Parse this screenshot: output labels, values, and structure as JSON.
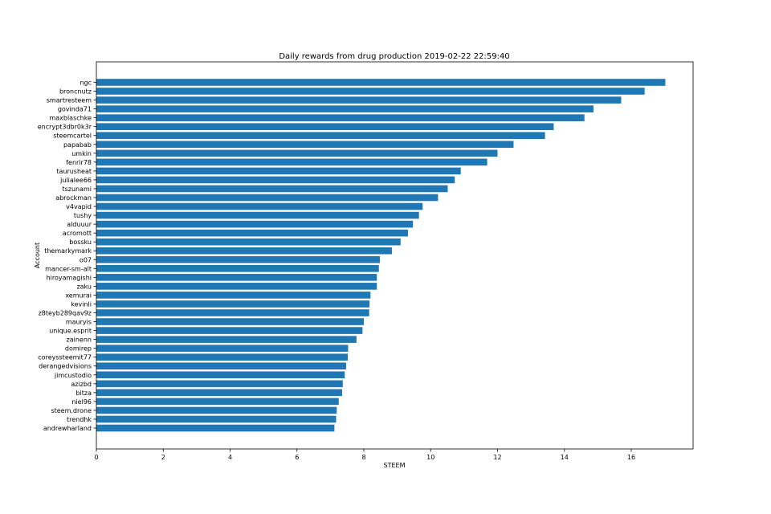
{
  "chart_data": {
    "type": "bar",
    "orientation": "horizontal",
    "title": "Daily rewards from drug production 2019-02-22 22:59:40",
    "xlabel": "STEEM",
    "ylabel": "Account",
    "xlim": [
      0,
      17.85
    ],
    "xticks": [
      0,
      2,
      4,
      6,
      8,
      10,
      12,
      14,
      16
    ],
    "grid": false,
    "color": "#1f77b4",
    "categories": [
      "ngc",
      "broncnutz",
      "smartresteem",
      "govinda71",
      "maxblaschke",
      "encrypt3dbr0k3r",
      "steemcartel",
      "papabab",
      "umkin",
      "fenrir78",
      "taurusheat",
      "julialee66",
      "tszunami",
      "abrockman",
      "v4vapid",
      "tushy",
      "alduuur",
      "acromott",
      "bossku",
      "themarkymark",
      "o07",
      "mancer-sm-alt",
      "hiroyamagishi",
      "zaku",
      "xemurai",
      "kevinli",
      "z8teyb289qav9z",
      "mauryis",
      "unique.esprit",
      "zainenn",
      "domirep",
      "coreyssteemit77",
      "derangedvisions",
      "jimcustodio",
      "azizbd",
      "bitza",
      "niel96",
      "steem.drone",
      "trendhk",
      "andrewharland"
    ],
    "values": [
      17.02,
      16.4,
      15.7,
      14.87,
      14.6,
      13.68,
      13.42,
      12.48,
      12.0,
      11.69,
      10.9,
      10.72,
      10.51,
      10.22,
      9.76,
      9.65,
      9.47,
      9.32,
      9.1,
      8.84,
      8.48,
      8.45,
      8.39,
      8.39,
      8.2,
      8.17,
      8.16,
      8.0,
      7.96,
      7.78,
      7.53,
      7.52,
      7.47,
      7.43,
      7.37,
      7.35,
      7.25,
      7.19,
      7.17,
      7.12
    ]
  }
}
